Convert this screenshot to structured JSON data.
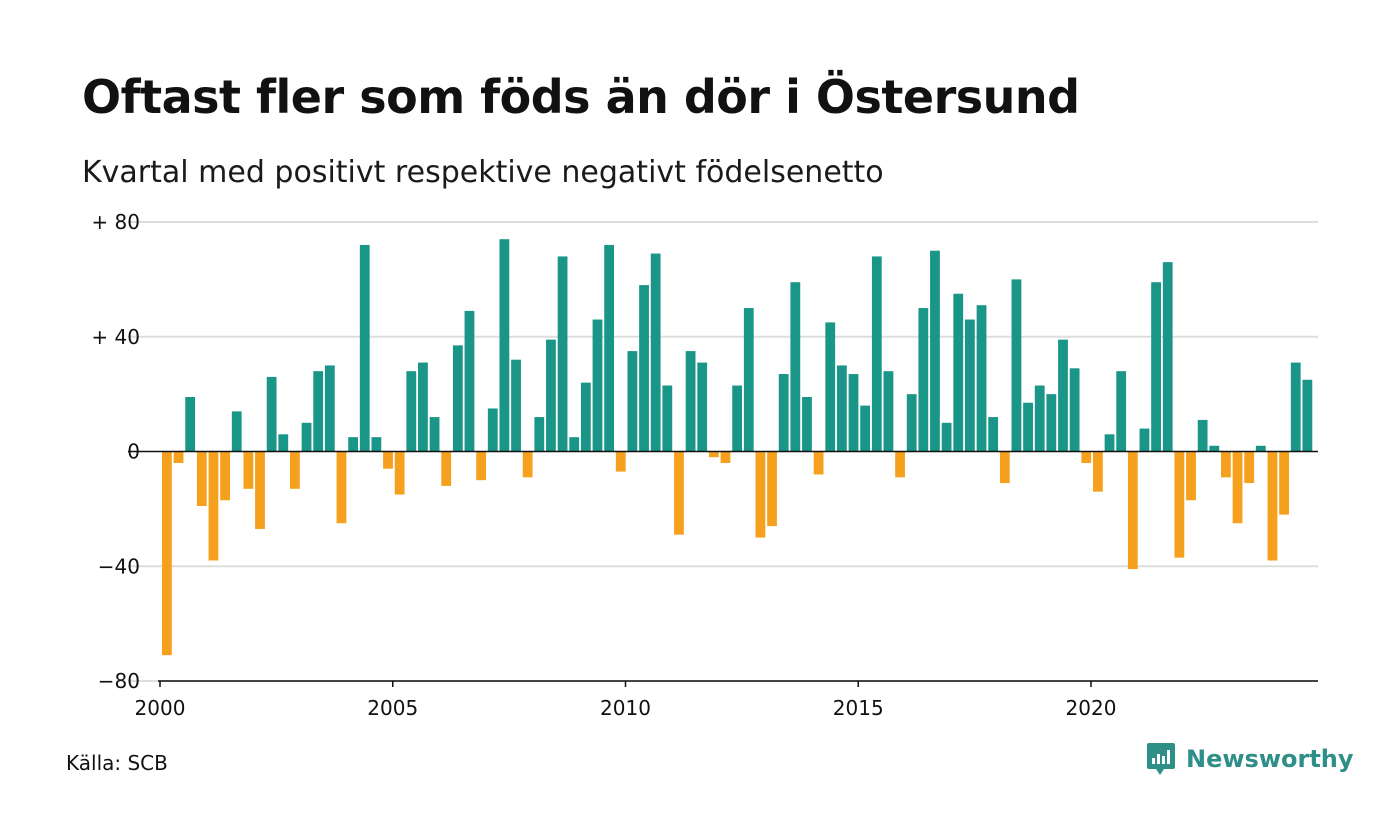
{
  "title": "Oftast fler som föds än dör i Östersund",
  "subtitle": "Kvartal med positivt respektive negativt födelsenetto",
  "source": "Källa: SCB",
  "brand": "Newsworthy",
  "colors": {
    "positive": "#1a9688",
    "negative": "#f5a11e",
    "grid": "#dddddd",
    "brand": "#2e8f88"
  },
  "chart_data": {
    "type": "bar",
    "x_start": 2000,
    "x_step": 0.25,
    "x_ticks": [
      2000,
      2005,
      2010,
      2015,
      2020
    ],
    "y_ticks": [
      {
        "value": 80,
        "label": "+ 80"
      },
      {
        "value": 40,
        "label": "+ 40"
      },
      {
        "value": 0,
        "label": "0"
      },
      {
        "value": -40,
        "label": "−40"
      },
      {
        "value": -80,
        "label": "−80"
      }
    ],
    "ylim": [
      -80,
      80
    ],
    "grid": true,
    "values": [
      -71,
      -4,
      19,
      -19,
      -38,
      -17,
      14,
      -13,
      -27,
      26,
      6,
      -13,
      10,
      28,
      30,
      -25,
      5,
      72,
      5,
      -6,
      -15,
      28,
      31,
      12,
      -12,
      37,
      49,
      -10,
      15,
      74,
      32,
      -9,
      12,
      39,
      68,
      5,
      24,
      46,
      72,
      -7,
      35,
      58,
      69,
      23,
      -29,
      35,
      31,
      -2,
      -4,
      23,
      50,
      -30,
      -26,
      27,
      59,
      19,
      -8,
      45,
      30,
      27,
      16,
      68,
      28,
      -9,
      20,
      50,
      70,
      10,
      55,
      46,
      51,
      12,
      -11,
      60,
      17,
      23,
      20,
      39,
      29,
      -4,
      -14,
      6,
      28,
      -41,
      8,
      59,
      66,
      -37,
      -17,
      11,
      2,
      -9,
      -25,
      -11,
      2,
      -38,
      -22,
      31,
      25
    ]
  }
}
